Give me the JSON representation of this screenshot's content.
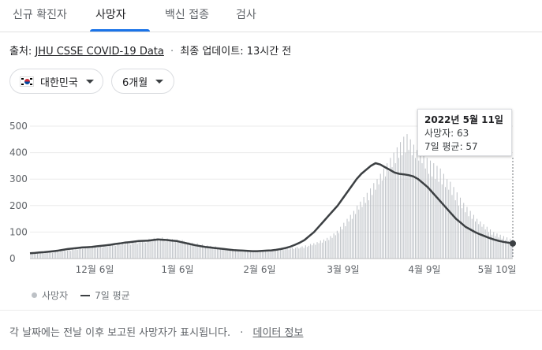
{
  "tabs": [
    {
      "label": "신규 확진자"
    },
    {
      "label": "사망자"
    },
    {
      "label": "백신 접종"
    },
    {
      "label": "검사"
    }
  ],
  "source": {
    "prefix": "출처:",
    "link": "JHU CSSE COVID-19 Data",
    "updated": "최종 업데이트: 13시간 전"
  },
  "filters": {
    "country": "대한민국",
    "period": "6개월"
  },
  "tooltip": {
    "date": "2022년 5월 11일",
    "deaths": "사망자: 63",
    "avg": "7일 평균: 57"
  },
  "legend": {
    "bars": "사망자",
    "line": "7일 평균"
  },
  "footer": {
    "note": "각 날짜에는 전날 이후 보고된 사망자가 표시됩니다.",
    "link": "데이터 정보"
  },
  "colors": {
    "bar": "#bdc1c6",
    "line": "#3c4043",
    "accent": "#1a73e8"
  },
  "chart_data": {
    "type": "bar",
    "series": [
      {
        "name": "사망자",
        "type": "bar",
        "values": [
          22,
          18,
          25,
          20,
          21,
          24,
          22,
          23,
          19,
          26,
          24,
          25,
          27,
          22,
          28,
          26,
          30,
          24,
          29,
          27,
          31,
          28,
          30,
          33,
          29,
          35,
          32,
          38,
          34,
          36,
          40,
          37,
          42,
          39,
          45,
          41,
          38,
          43,
          47,
          44,
          40,
          46,
          50,
          42,
          48,
          45,
          44,
          52,
          49,
          55,
          51,
          48,
          58,
          54,
          50,
          60,
          53,
          57,
          62,
          56,
          52,
          65,
          59,
          61,
          56,
          68,
          63,
          70,
          66,
          60,
          72,
          75,
          70,
          65,
          78,
          68,
          72,
          66,
          74,
          80,
          70,
          64,
          76,
          72,
          68,
          74,
          70,
          66,
          72,
          68,
          64,
          70,
          66,
          62,
          58,
          62,
          56,
          60,
          54,
          52,
          58,
          50,
          48,
          54,
          46,
          44,
          50,
          42,
          48,
          44,
          40,
          46,
          38,
          42,
          36,
          40,
          34,
          38,
          32,
          36,
          30,
          34,
          28,
          32,
          30,
          28,
          34,
          26,
          30,
          28,
          32,
          26,
          30,
          24,
          28,
          26,
          30,
          24,
          28,
          26,
          30,
          28,
          32,
          26,
          30,
          34,
          28,
          32,
          36,
          30,
          34,
          38,
          32,
          36,
          40,
          34,
          38,
          42,
          36,
          40,
          44,
          38,
          42,
          46,
          40,
          50,
          44,
          48,
          55,
          50,
          58,
          52,
          62,
          58,
          68,
          60,
          72,
          66,
          78,
          70,
          85,
          78,
          95,
          88,
          105,
          96,
          120,
          110,
          135,
          122,
          150,
          140,
          165,
          150,
          180,
          168,
          200,
          185,
          215,
          195,
          232,
          210,
          248,
          220,
          265,
          240,
          285,
          260,
          300,
          280,
          320,
          295,
          340,
          310,
          360,
          330,
          380,
          345,
          400,
          360,
          420,
          380,
          440,
          390,
          460,
          400,
          470,
          410,
          450,
          390,
          430,
          380,
          410,
          370,
          400,
          360,
          390,
          340,
          380,
          320,
          370,
          310,
          360,
          300,
          350,
          290,
          340,
          280,
          320,
          270,
          300,
          260,
          290,
          240,
          270,
          220,
          250,
          200,
          230,
          190,
          210,
          175,
          195,
          160,
          180,
          150,
          165,
          140,
          150,
          130,
          140,
          120,
          130,
          110,
          120,
          100,
          110,
          90,
          100,
          85,
          95,
          80,
          90,
          75,
          85,
          70,
          80,
          66,
          75,
          63
        ]
      },
      {
        "name": "7일 평균",
        "type": "line",
        "x": [
          0,
          6,
          12,
          18,
          24,
          30,
          36,
          42,
          48,
          54,
          60,
          66,
          72,
          78,
          84,
          90,
          96,
          102,
          108,
          114,
          120,
          126,
          132,
          138,
          144,
          150,
          156,
          162,
          168,
          174,
          180,
          186,
          192,
          198,
          204,
          210,
          216,
          222,
          228,
          234,
          240,
          246,
          252,
          258,
          264,
          270,
          276,
          282,
          288,
          294,
          300,
          306,
          312,
          318,
          324,
          330,
          336,
          342,
          348,
          354,
          360,
          366,
          372,
          378,
          384,
          390,
          396,
          402,
          408,
          414,
          420,
          426,
          432,
          438,
          444,
          450,
          456,
          462,
          468,
          474,
          480,
          486,
          492,
          498,
          504,
          510,
          516,
          522,
          528,
          534,
          540,
          546,
          552,
          558,
          564,
          570,
          576,
          582,
          588,
          594,
          600,
          606,
          612
        ],
        "values": [
          20,
          21,
          23,
          24,
          26,
          28,
          30,
          33,
          36,
          38,
          40,
          42,
          43,
          44,
          46,
          48,
          50,
          52,
          55,
          57,
          60,
          62,
          64,
          66,
          67,
          68,
          70,
          72,
          71,
          70,
          68,
          66,
          62,
          58,
          54,
          50,
          47,
          44,
          42,
          40,
          38,
          36,
          34,
          32,
          31,
          30,
          29,
          28,
          28,
          29,
          30,
          31,
          33,
          36,
          40,
          45,
          52,
          60,
          70,
          85,
          100,
          120,
          140,
          160,
          180,
          200,
          225,
          250,
          275,
          300,
          320,
          335,
          350,
          360,
          355,
          345,
          335,
          325,
          320,
          318,
          315,
          310,
          300,
          285,
          270,
          250,
          230,
          210,
          190,
          170,
          150,
          135,
          120,
          110,
          100,
          92,
          85,
          78,
          72,
          67,
          63,
          60,
          57
        ]
      }
    ],
    "x_tick_labels": [
      "12월 6일",
      "1월 6일",
      "2월 6일",
      "3월 9일",
      "4월 9일",
      "5월 10일"
    ],
    "y_ticks": [
      0,
      100,
      200,
      300,
      400,
      500
    ],
    "ylim": [
      0,
      500
    ],
    "grid": true,
    "legend": "bottom-left"
  }
}
